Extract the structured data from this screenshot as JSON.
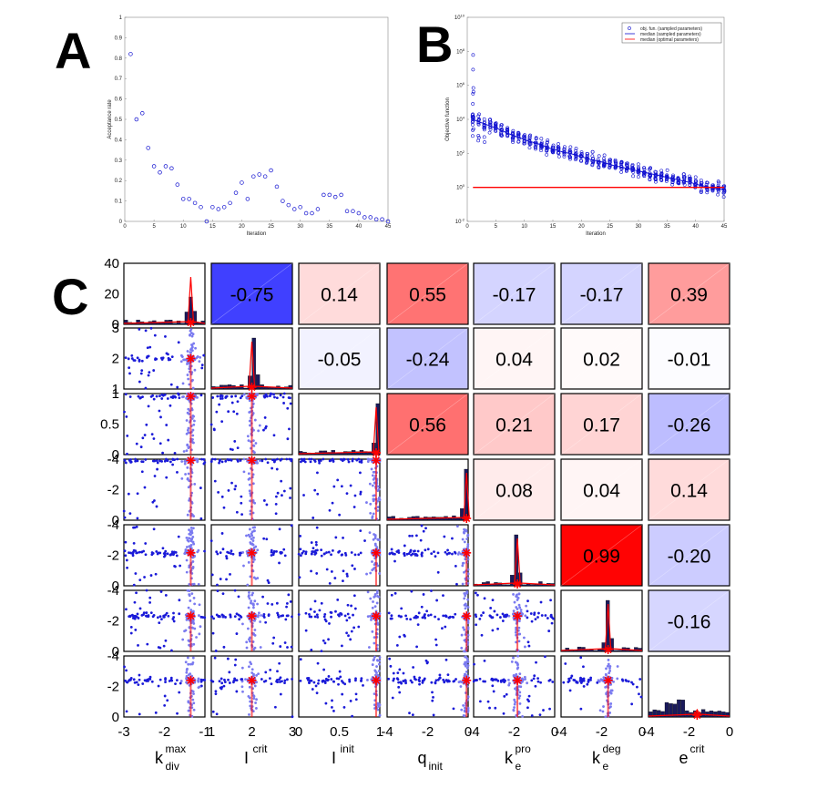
{
  "labels": {
    "A": "A",
    "B": "B",
    "C": "C"
  },
  "colors": {
    "blue": "#1010d0",
    "red": "#ff0000",
    "navy": "#1a1a5c",
    "corr_pos": "#ff0000",
    "corr_neg": "#0000ff"
  },
  "chart_data": [
    {
      "id": "A",
      "type": "scatter",
      "xlabel": "Iteration",
      "ylabel": "Acceptance rate",
      "xlim": [
        0,
        45
      ],
      "ylim": [
        0,
        1
      ],
      "xticks": [
        "0",
        "5",
        "10",
        "15",
        "20",
        "25",
        "30",
        "35",
        "40",
        "45"
      ],
      "yticks": [
        "0",
        "0.1",
        "0.2",
        "0.3",
        "0.4",
        "0.5",
        "0.6",
        "0.7",
        "0.8",
        "0.9",
        "1"
      ],
      "x": [
        1,
        2,
        3,
        4,
        5,
        6,
        7,
        8,
        9,
        10,
        11,
        12,
        13,
        14,
        15,
        16,
        17,
        18,
        19,
        20,
        21,
        22,
        23,
        24,
        25,
        26,
        27,
        28,
        29,
        30,
        31,
        32,
        33,
        34,
        35,
        36,
        37,
        38,
        39,
        40,
        41,
        42,
        43,
        44,
        45
      ],
      "y": [
        0.82,
        0.5,
        0.53,
        0.36,
        0.27,
        0.24,
        0.27,
        0.26,
        0.18,
        0.11,
        0.11,
        0.09,
        0.07,
        0.0,
        0.07,
        0.06,
        0.07,
        0.09,
        0.14,
        0.19,
        0.11,
        0.22,
        0.23,
        0.22,
        0.25,
        0.17,
        0.1,
        0.08,
        0.06,
        0.07,
        0.04,
        0.04,
        0.06,
        0.13,
        0.13,
        0.12,
        0.13,
        0.05,
        0.05,
        0.04,
        0.02,
        0.02,
        0.01,
        0.01,
        0.0
      ]
    },
    {
      "id": "B",
      "type": "scatter",
      "xlabel": "Iteration",
      "ylabel": "Objective function",
      "xlim": [
        0,
        45
      ],
      "ylim_log10": [
        -2,
        10
      ],
      "xticks": [
        "0",
        "5",
        "10",
        "15",
        "20",
        "25",
        "30",
        "35",
        "40",
        "45"
      ],
      "yticks_exp": [
        -2,
        0,
        2,
        4,
        6,
        8,
        10
      ],
      "yticks_base": "10",
      "legend_position": "top-right",
      "series": [
        {
          "name": "obj. fun. (sampled parameters)",
          "style": "circles"
        },
        {
          "name": "median (sampled parameters)",
          "style": "blue-line"
        },
        {
          "name": "median (optimal parameters)",
          "style": "red-line"
        }
      ],
      "median_log10": [
        4.0,
        3.85,
        3.75,
        3.6,
        3.5,
        3.35,
        3.2,
        3.05,
        2.95,
        2.8,
        2.7,
        2.6,
        2.5,
        2.35,
        2.25,
        2.15,
        2.05,
        2.0,
        1.9,
        1.8,
        1.7,
        1.6,
        1.55,
        1.45,
        1.35,
        1.25,
        1.2,
        1.1,
        1.05,
        0.95,
        0.9,
        0.8,
        0.75,
        0.65,
        0.6,
        0.5,
        0.45,
        0.35,
        0.3,
        0.2,
        0.1,
        0.05,
        -0.05,
        -0.1,
        -0.15
      ],
      "optimal_log10": 0.0
    },
    {
      "id": "C",
      "type": "matrix",
      "params": [
        {
          "base": "k",
          "sup": "max",
          "sub": "div",
          "range": [
            -3,
            -1
          ],
          "ticks": [
            "-3",
            "-2",
            "-1"
          ],
          "best": -1.35
        },
        {
          "base": "I",
          "sup": "crit",
          "sub": "",
          "range": [
            1,
            3
          ],
          "ticks": [
            "1",
            "2",
            "3"
          ],
          "best": 2.0
        },
        {
          "base": "I",
          "sup": "init",
          "sub": "",
          "range": [
            0,
            1.1
          ],
          "ticks": [
            "0",
            "0.5",
            "1"
          ],
          "best": 1.05
        },
        {
          "base": "q",
          "sup": "",
          "sub": "init",
          "range": [
            -5,
            0
          ],
          "ticks": [
            "-4",
            "-2",
            "0"
          ],
          "best": -0.1
        },
        {
          "base": "k",
          "sup": "pro",
          "sub": "e",
          "range": [
            -5,
            0
          ],
          "ticks": [
            "-4",
            "-2",
            "0"
          ],
          "best": -2.3
        },
        {
          "base": "k",
          "sup": "deg",
          "sub": "e",
          "range": [
            -5,
            0
          ],
          "ticks": [
            "-4",
            "-2",
            "0"
          ],
          "best": -2.1
        },
        {
          "base": "e",
          "sup": "crit",
          "sub": "",
          "range": [
            -5,
            0
          ],
          "ticks": [
            "-4",
            "-2",
            "0"
          ],
          "best": -2.0
        }
      ],
      "row_ticks": [
        [
          "0",
          "20",
          "40"
        ],
        [
          "1",
          "2",
          "3"
        ],
        [
          "0",
          "0.5",
          "1"
        ],
        [
          "0",
          "-2",
          "-4"
        ],
        [
          "0",
          "-2",
          "-4"
        ],
        [
          "0",
          "-2",
          "-4"
        ],
        [
          "0",
          "-2",
          "-4"
        ]
      ],
      "correlations": [
        {
          "row": 0,
          "col": 1,
          "value": -0.75,
          "label": "-0.75"
        },
        {
          "row": 0,
          "col": 2,
          "value": 0.14,
          "label": "0.14"
        },
        {
          "row": 0,
          "col": 3,
          "value": 0.55,
          "label": "0.55"
        },
        {
          "row": 0,
          "col": 4,
          "value": -0.17,
          "label": "-0.17"
        },
        {
          "row": 0,
          "col": 5,
          "value": -0.17,
          "label": "-0.17"
        },
        {
          "row": 0,
          "col": 6,
          "value": 0.39,
          "label": "0.39"
        },
        {
          "row": 1,
          "col": 2,
          "value": -0.05,
          "label": "-0.05"
        },
        {
          "row": 1,
          "col": 3,
          "value": -0.24,
          "label": "-0.24"
        },
        {
          "row": 1,
          "col": 4,
          "value": 0.04,
          "label": "0.04"
        },
        {
          "row": 1,
          "col": 5,
          "value": 0.02,
          "label": "0.02"
        },
        {
          "row": 1,
          "col": 6,
          "value": -0.01,
          "label": "-0.01"
        },
        {
          "row": 2,
          "col": 3,
          "value": 0.56,
          "label": "0.56"
        },
        {
          "row": 2,
          "col": 4,
          "value": 0.21,
          "label": "0.21"
        },
        {
          "row": 2,
          "col": 5,
          "value": 0.17,
          "label": "0.17"
        },
        {
          "row": 2,
          "col": 6,
          "value": -0.26,
          "label": "-0.26"
        },
        {
          "row": 3,
          "col": 4,
          "value": 0.08,
          "label": "0.08"
        },
        {
          "row": 3,
          "col": 5,
          "value": 0.04,
          "label": "0.04"
        },
        {
          "row": 3,
          "col": 6,
          "value": 0.14,
          "label": "0.14"
        },
        {
          "row": 4,
          "col": 5,
          "value": 0.99,
          "label": "0.99"
        },
        {
          "row": 4,
          "col": 6,
          "value": -0.2,
          "label": "-0.20"
        },
        {
          "row": 5,
          "col": 6,
          "value": -0.16,
          "label": "-0.16"
        }
      ]
    }
  ]
}
